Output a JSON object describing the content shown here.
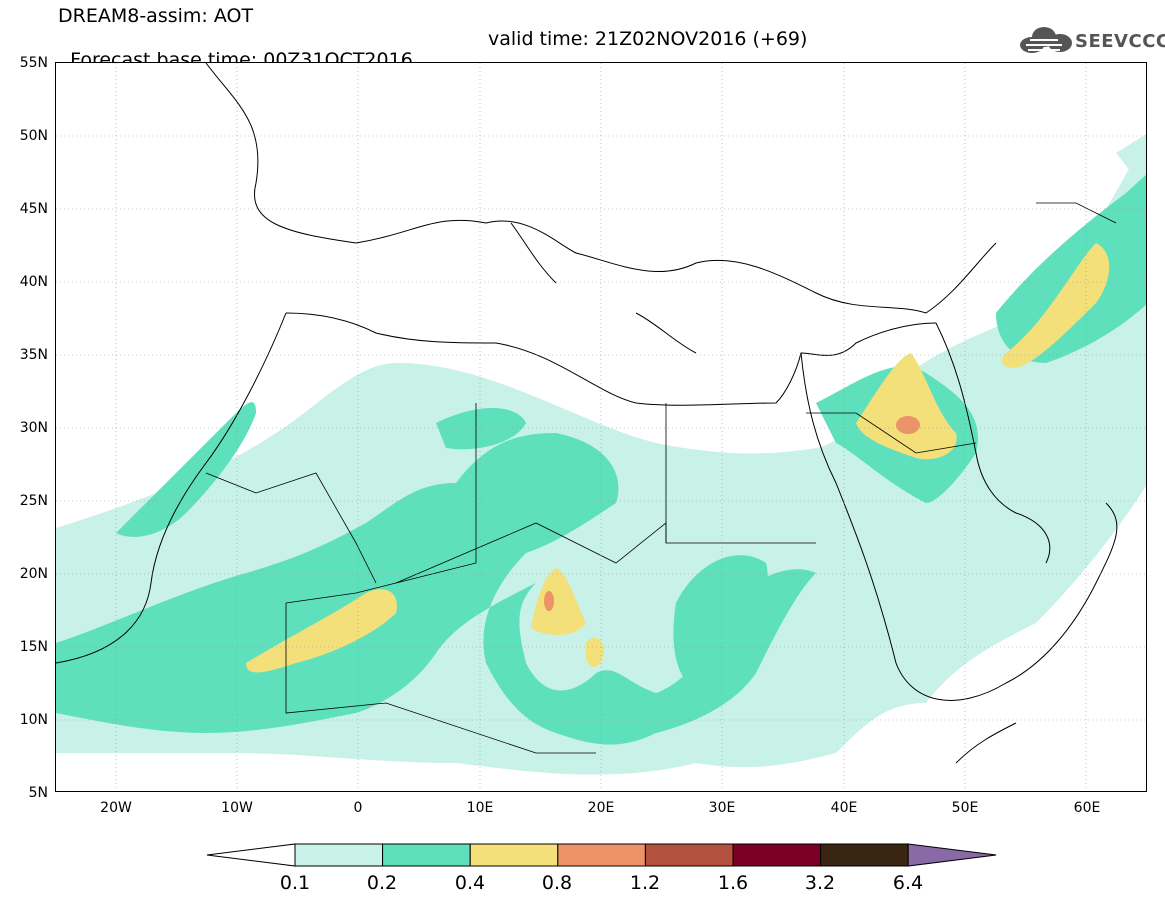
{
  "header": {
    "line1": "DREAM8-assim: AOT",
    "base_time": "Forecast base time: 00Z31OCT2016",
    "valid_time": "valid time: 21Z02NOV2016 (+69)",
    "logo": "SEEVCCC"
  },
  "map": {
    "lat_labels": [
      "55N",
      "50N",
      "45N",
      "40N",
      "35N",
      "30N",
      "25N",
      "20N",
      "15N",
      "10N",
      "5N"
    ],
    "lon_labels": [
      "20W",
      "10W",
      "0",
      "10E",
      "20E",
      "30E",
      "40E",
      "50E",
      "60E"
    ],
    "lon_range": [
      -25,
      65
    ],
    "lat_range": [
      5,
      55
    ]
  },
  "colorbar": {
    "levels": [
      "0.1",
      "0.2",
      "0.4",
      "0.8",
      "1.2",
      "1.6",
      "3.2",
      "6.4"
    ],
    "colors": [
      "#ffffff",
      "#c8f1e8",
      "#5ee0bd",
      "#f3e07a",
      "#ec9468",
      "#b4503e",
      "#7a0026",
      "#3a2512",
      "#8a6aa6"
    ]
  }
}
